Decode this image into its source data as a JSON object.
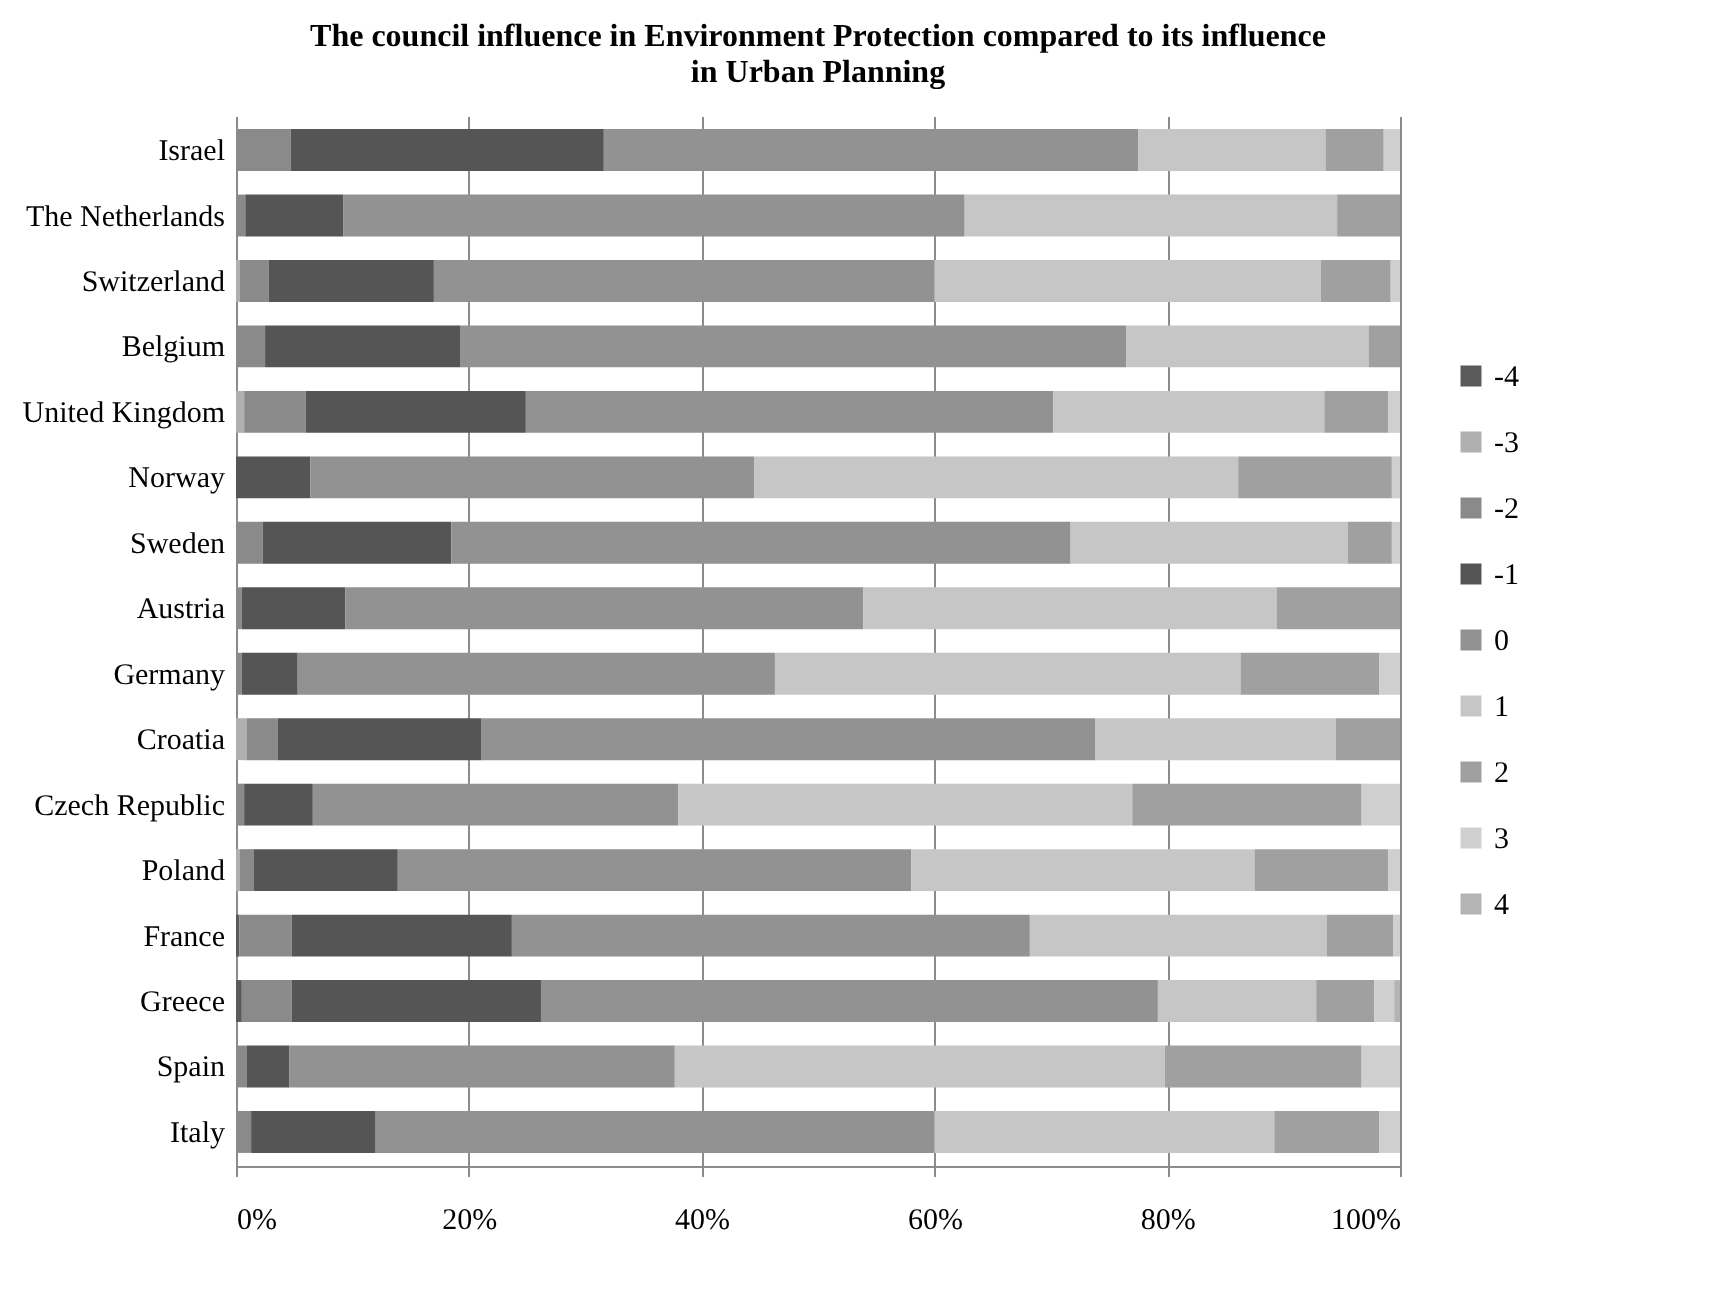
{
  "chart_data": {
    "type": "bar",
    "orientation": "horizontal",
    "stacked": true,
    "title": "The council influence in Environment Protection compared to its influence in Urban Planning",
    "categories": [
      "Israel",
      "The Netherlands",
      "Switzerland",
      "Belgium",
      "United Kingdom",
      "Norway",
      "Sweden",
      "Austria",
      "Germany",
      "Croatia",
      "Czech Republic",
      "Poland",
      "France",
      "Greece",
      "Spain",
      "Italy"
    ],
    "series": [
      {
        "name": "-4",
        "color": "#5a5a5a",
        "values": [
          null,
          null,
          null,
          null,
          null,
          null,
          null,
          null,
          null,
          null,
          null,
          null,
          0.3,
          0.5,
          null,
          null
        ]
      },
      {
        "name": "-3",
        "color": "#b0b0b0",
        "values": [
          null,
          null,
          0.3,
          null,
          0.7,
          null,
          null,
          null,
          null,
          0.9,
          null,
          0.3,
          null,
          null,
          null,
          null
        ]
      },
      {
        "name": "-2",
        "color": "#8a8a8a",
        "values": [
          4.7,
          0.8,
          2.5,
          2.5,
          5.3,
          null,
          2.3,
          0.5,
          0.5,
          2.7,
          0.7,
          1.2,
          4.5,
          4.3,
          0.9,
          1.3
        ]
      },
      {
        "name": "-1",
        "color": "#555555",
        "values": [
          26.9,
          8.4,
          14.2,
          16.8,
          18.9,
          6.4,
          16.2,
          8.9,
          4.8,
          17.5,
          5.9,
          12.4,
          18.9,
          21.4,
          3.7,
          10.7
        ]
      },
      {
        "name": "0",
        "color": "#929292",
        "values": [
          45.9,
          53.4,
          43.0,
          57.2,
          45.3,
          38.1,
          53.2,
          44.5,
          41.0,
          52.7,
          31.4,
          44.1,
          44.5,
          53.0,
          33.1,
          48.0
        ]
      },
      {
        "name": "1",
        "color": "#c6c6c6",
        "values": [
          16.1,
          32.0,
          33.2,
          20.8,
          23.3,
          41.6,
          23.8,
          35.5,
          40.0,
          20.7,
          39.0,
          29.5,
          25.5,
          13.6,
          42.1,
          29.2
        ]
      },
      {
        "name": "2",
        "color": "#a0a0a0",
        "values": [
          5.0,
          5.4,
          6.0,
          2.7,
          5.5,
          13.2,
          3.8,
          10.6,
          11.9,
          5.5,
          19.7,
          11.5,
          5.7,
          5.0,
          16.9,
          9.0
        ]
      },
      {
        "name": "3",
        "color": "#cfcfcf",
        "values": [
          1.4,
          null,
          0.8,
          null,
          1.0,
          0.7,
          0.7,
          null,
          1.8,
          null,
          3.3,
          1.0,
          0.6,
          1.7,
          3.3,
          1.8
        ]
      },
      {
        "name": "4",
        "color": "#b4b4b4",
        "values": [
          null,
          null,
          null,
          null,
          null,
          null,
          null,
          null,
          null,
          null,
          null,
          null,
          null,
          0.5,
          null,
          null
        ]
      }
    ],
    "xlim": [
      0,
      100
    ],
    "xticks": [
      {
        "value": 0,
        "label": "0%"
      },
      {
        "value": 20,
        "label": "20%"
      },
      {
        "value": 40,
        "label": "40%"
      },
      {
        "value": 60,
        "label": "60%"
      },
      {
        "value": 80,
        "label": "80%"
      },
      {
        "value": 100,
        "label": "100%"
      }
    ],
    "grid": "x",
    "legend": "right"
  }
}
